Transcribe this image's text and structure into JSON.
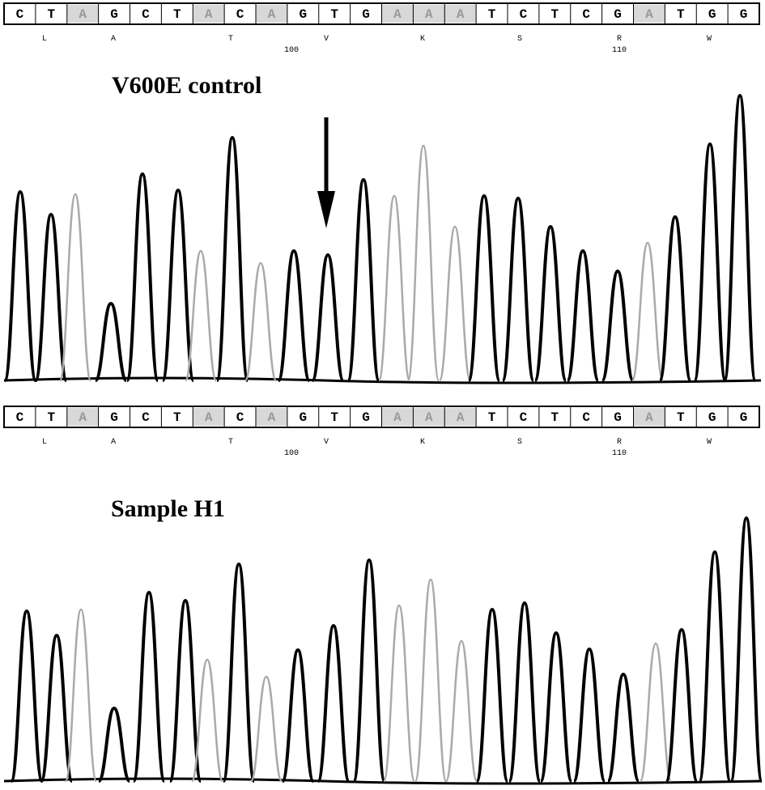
{
  "panels": [
    {
      "sequence": [
        "C",
        "T",
        "A",
        "G",
        "C",
        "T",
        "A",
        "C",
        "A",
        "G",
        "T",
        "G",
        "A",
        "A",
        "A",
        "T",
        "C",
        "T",
        "C",
        "G",
        "A",
        "T",
        "G",
        "G"
      ],
      "residues": [
        "L",
        "A",
        "T",
        "V",
        "K",
        "S",
        "R",
        "W"
      ],
      "positions": [
        100,
        110
      ],
      "title": "V600E control",
      "peaks": [
        233,
        205,
        230,
        95,
        255,
        235,
        160,
        300,
        145,
        160,
        155,
        248,
        228,
        290,
        190,
        228,
        225,
        190,
        160,
        135,
        170,
        202,
        292,
        352
      ]
    },
    {
      "sequence": [
        "C",
        "T",
        "A",
        "G",
        "C",
        "T",
        "A",
        "C",
        "A",
        "G",
        "T",
        "G",
        "A",
        "A",
        "A",
        "T",
        "C",
        "T",
        "C",
        "G",
        "A",
        "T",
        "G",
        "G"
      ],
      "residues": [
        "L",
        "A",
        "T",
        "V",
        "K",
        "S",
        "R",
        "W"
      ],
      "positions": [
        100,
        110
      ],
      "title": "Sample H1",
      "peaks": [
        210,
        180,
        212,
        90,
        233,
        223,
        150,
        268,
        129,
        162,
        192,
        273,
        217,
        249,
        173,
        212,
        220,
        183,
        163,
        132,
        170,
        187,
        283,
        325
      ]
    }
  ]
}
